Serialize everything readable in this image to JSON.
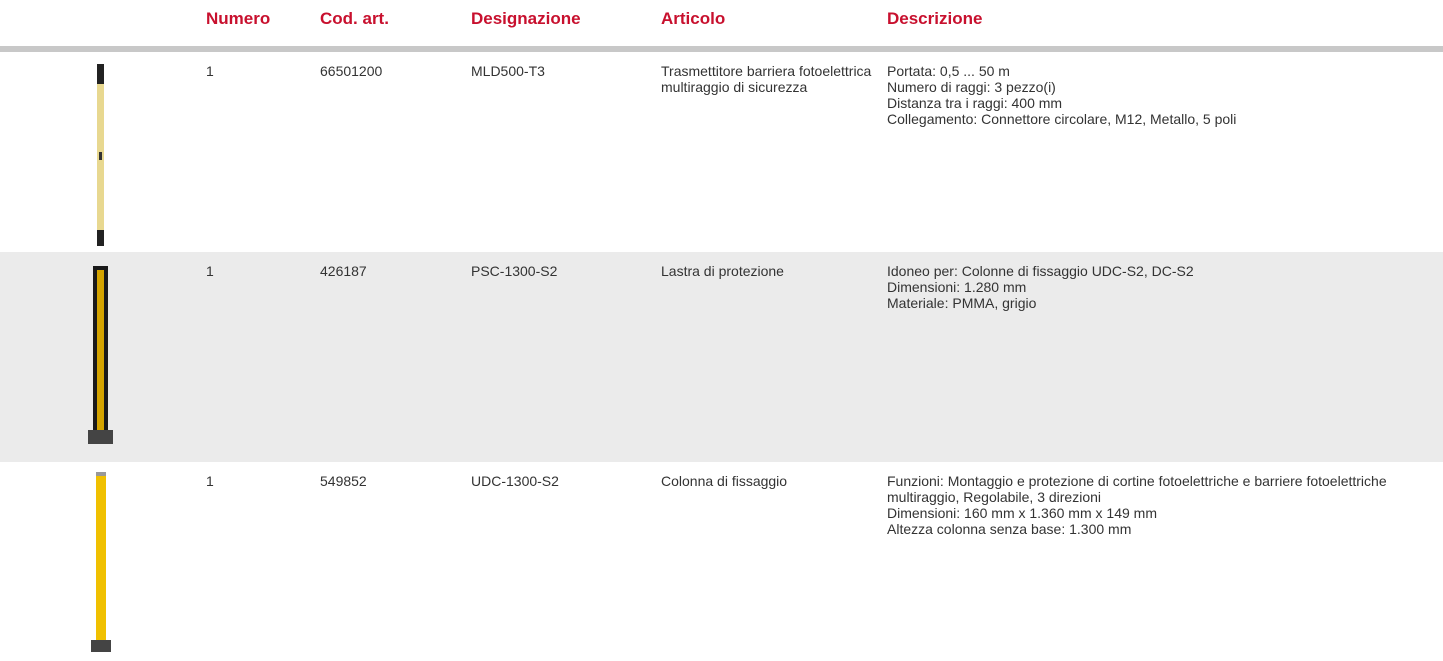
{
  "table": {
    "headers": [
      "Numero",
      "Cod. art.",
      "Designazione",
      "Articolo",
      "Descrizione"
    ],
    "rows": [
      {
        "number": "1",
        "code": "66501200",
        "designation": "MLD500-T3",
        "article": "Trasmettitore barriera fotoelettrica multiraggio di sicurezza",
        "description": [
          "Portata: 0,5 ... 50 m",
          "Numero di raggi: 3 pezzo(i)",
          "Distanza tra i raggi: 400 mm",
          "Collegamento: Connettore circolare, M12, Metallo, 5 poli"
        ]
      },
      {
        "number": "1",
        "code": "426187",
        "designation": "PSC-1300-S2",
        "article": "Lastra di protezione",
        "description": [
          "Idoneo per: Colonne di fissaggio UDC-S2, DC-S2",
          "Dimensioni: 1.280 mm",
          "Materiale: PMMA, grigio"
        ]
      },
      {
        "number": "1",
        "code": "549852",
        "designation": "UDC-1300-S2",
        "article": "Colonna di fissaggio",
        "description": [
          "Funzioni: Montaggio e protezione di cortine fotoelettriche e barriere fotoelettriche multiraggio, Regolabile, 3 direzioni",
          "Dimensioni: 160 mm x 1.360 mm x 149 mm",
          "Altezza colonna senza base: 1.300 mm"
        ]
      }
    ]
  }
}
